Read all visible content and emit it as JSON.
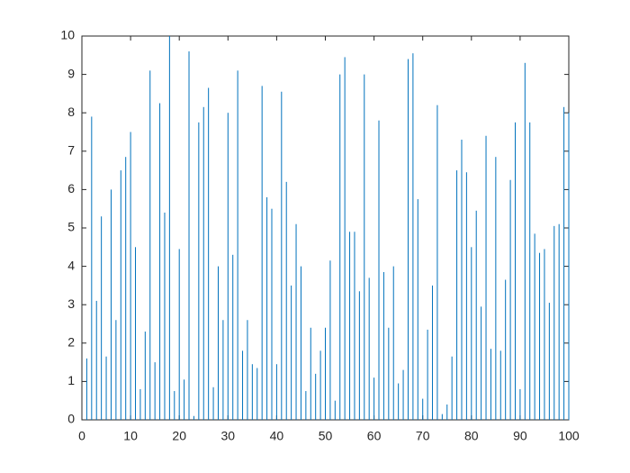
{
  "chart_data": {
    "type": "bar",
    "color": "#0072bd",
    "x": [
      1,
      2,
      3,
      4,
      5,
      6,
      7,
      8,
      9,
      10,
      11,
      12,
      13,
      14,
      15,
      16,
      17,
      18,
      19,
      20,
      21,
      22,
      23,
      24,
      25,
      26,
      27,
      28,
      29,
      30,
      31,
      32,
      33,
      34,
      35,
      36,
      37,
      38,
      39,
      40,
      41,
      42,
      43,
      44,
      45,
      46,
      47,
      48,
      49,
      50,
      51,
      52,
      53,
      54,
      55,
      56,
      57,
      58,
      59,
      60,
      61,
      62,
      63,
      64,
      65,
      66,
      67,
      68,
      69,
      70,
      71,
      72,
      73,
      74,
      75,
      76,
      77,
      78,
      79,
      80,
      81,
      82,
      83,
      84,
      85,
      86,
      87,
      88,
      89,
      90,
      91,
      92,
      93,
      94,
      95,
      96,
      97,
      98,
      99,
      100
    ],
    "values": [
      1.6,
      7.9,
      3.1,
      5.3,
      1.65,
      6.0,
      2.6,
      6.5,
      6.85,
      7.5,
      4.5,
      0.8,
      2.3,
      9.1,
      1.5,
      8.25,
      5.4,
      10.0,
      0.75,
      4.45,
      1.05,
      9.6,
      0.1,
      7.75,
      8.15,
      8.65,
      0.85,
      4.0,
      2.6,
      8.0,
      4.3,
      9.1,
      1.8,
      2.6,
      1.45,
      1.35,
      8.7,
      5.8,
      5.5,
      1.45,
      8.55,
      6.2,
      3.5,
      5.1,
      4.0,
      0.75,
      2.4,
      1.2,
      1.8,
      2.4,
      4.15,
      0.5,
      9.0,
      9.45,
      4.9,
      4.9,
      3.35,
      9.0,
      3.7,
      1.1,
      7.8,
      3.85,
      2.4,
      4.0,
      0.95,
      1.3,
      9.4,
      9.55,
      5.75,
      0.55,
      2.35,
      3.5,
      8.2,
      0.15,
      0.4,
      1.65,
      6.5,
      7.3,
      6.45,
      4.5,
      5.45,
      2.95,
      7.4,
      1.85,
      6.85,
      1.8,
      3.65,
      6.25,
      7.75,
      0.8,
      9.3,
      7.75,
      4.85,
      4.35,
      4.45,
      3.05,
      5.05,
      5.1,
      8.15,
      8.0
    ],
    "xlim": [
      0,
      100
    ],
    "xticks": [
      0,
      10,
      20,
      30,
      40,
      50,
      60,
      70,
      80,
      90,
      100
    ],
    "ylim": [
      0,
      10
    ],
    "yticks": [
      0,
      1,
      2,
      3,
      4,
      5,
      6,
      7,
      8,
      9,
      10
    ]
  }
}
